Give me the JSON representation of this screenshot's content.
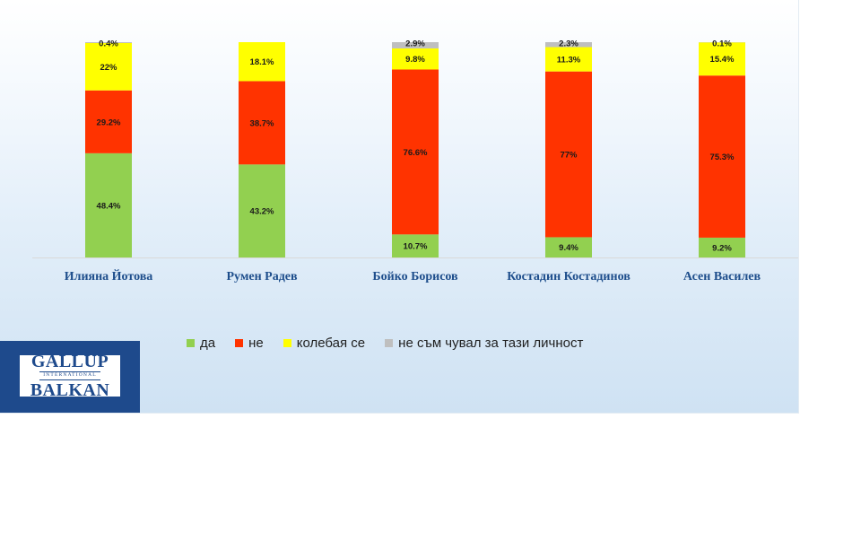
{
  "chart_data": {
    "type": "bar",
    "stacked": true,
    "categories": [
      "Илияна Йотова",
      "Румен Радев",
      "Бойко Борисов",
      "Костадин Костадинов",
      "Асен Василев"
    ],
    "series": [
      {
        "name": "да",
        "color": "#92d050",
        "values": [
          48.4,
          43.2,
          10.7,
          9.4,
          9.2
        ],
        "labels": [
          "48.4%",
          "43.2%",
          "10.7%",
          "9.4%",
          "9.2%"
        ]
      },
      {
        "name": "не",
        "color": "#ff3300",
        "values": [
          29.2,
          38.7,
          76.6,
          77,
          75.3
        ],
        "labels": [
          "29.2%",
          "38.7%",
          "76.6%",
          "77%",
          "75.3%"
        ]
      },
      {
        "name": "колебая се",
        "color": "#ffff00",
        "values": [
          22,
          18.1,
          9.8,
          11.3,
          15.4
        ],
        "labels": [
          "22%",
          "18.1%",
          "9.8%",
          "11.3%",
          "15.4%"
        ]
      },
      {
        "name": "не съм чувал за тази личност",
        "color": "#bfbfbf",
        "values": [
          0.4,
          0,
          2.9,
          2.3,
          0.1
        ],
        "labels": [
          "0.4%",
          "",
          "2.9%",
          "2.3%",
          "0.1%"
        ]
      }
    ],
    "ylim": [
      0,
      100
    ],
    "legend_position": "bottom",
    "grid": false
  },
  "logo": {
    "line1": "GALLUP",
    "line2": "INTERNATIONAL",
    "line3": "BALKAN"
  },
  "colors": {
    "category_label": "#1e4e8c",
    "logo_bg": "#1e4a8c"
  }
}
